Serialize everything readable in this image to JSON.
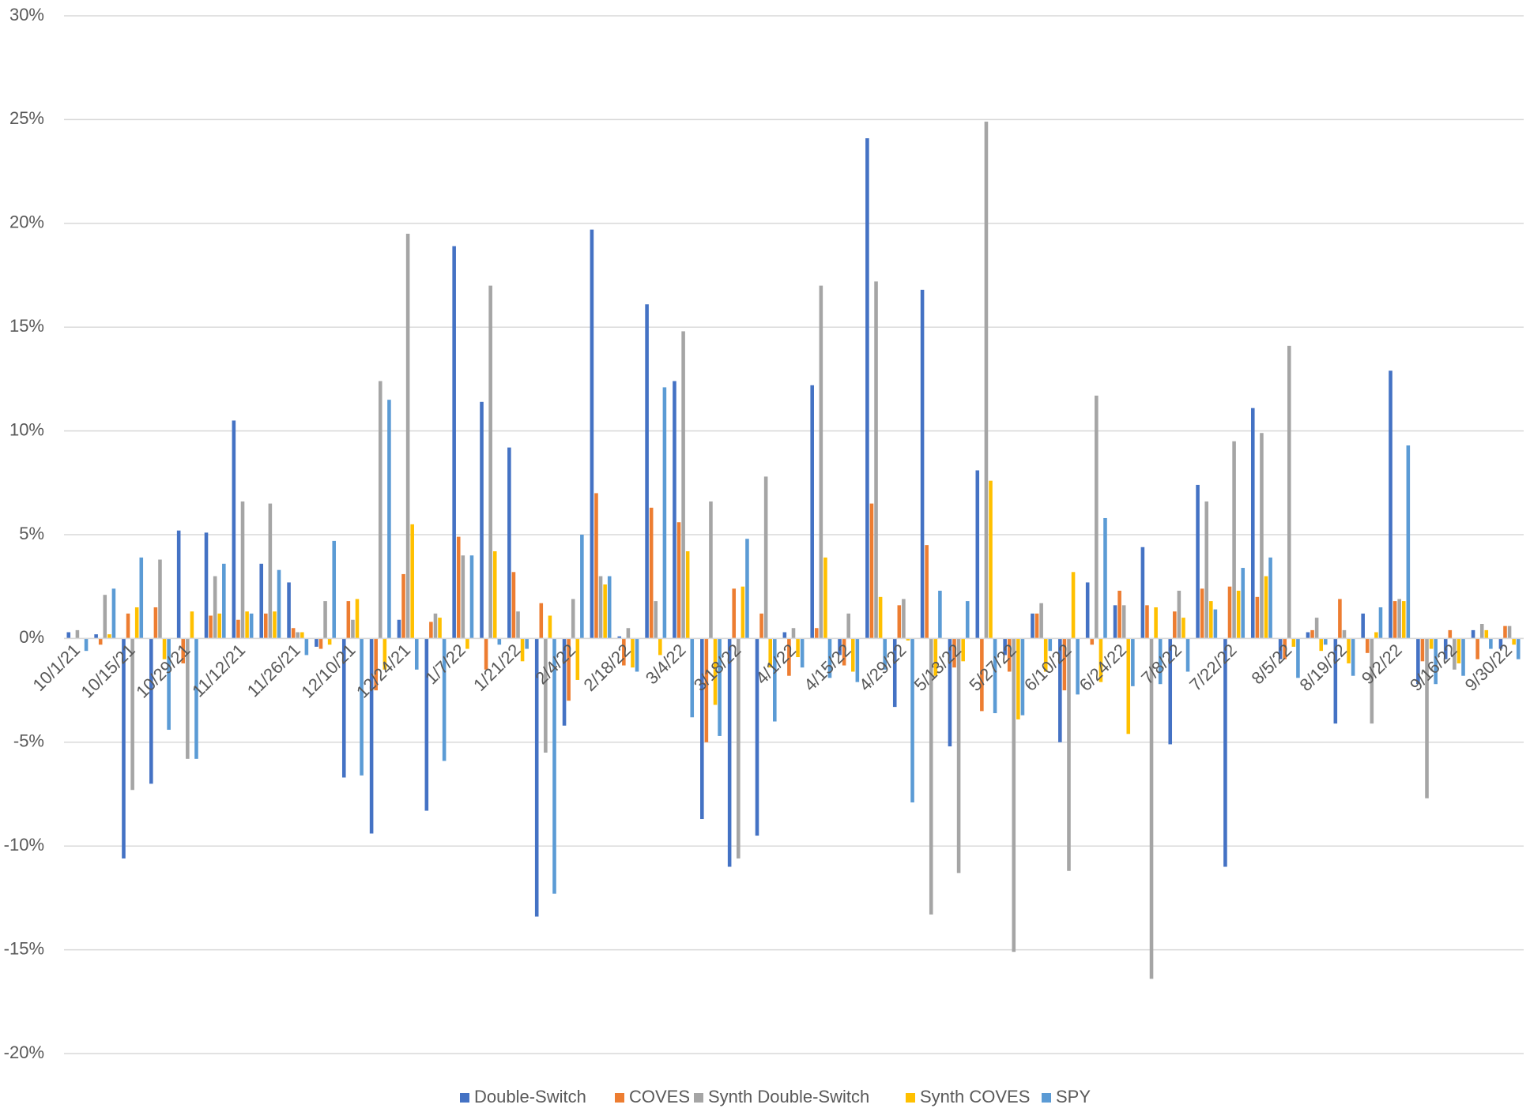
{
  "chart_data": {
    "type": "bar",
    "categories": [
      "10/1/21",
      null,
      "10/15/21",
      null,
      "10/29/21",
      null,
      "11/12/21",
      null,
      "11/26/21",
      null,
      "12/10/21",
      null,
      "12/24/21",
      null,
      "1/7/22",
      null,
      "1/21/22",
      null,
      "2/4/22",
      null,
      "2/18/22",
      null,
      "3/4/22",
      null,
      "3/18/22",
      null,
      "4/1/22",
      null,
      "4/15/22",
      null,
      "4/29/22",
      null,
      "5/13/22",
      null,
      "5/27/22",
      null,
      "6/10/22",
      null,
      "6/24/22",
      null,
      "7/8/22",
      null,
      "7/22/22",
      null,
      "8/5/22",
      null,
      "8/19/22",
      null,
      "9/2/22",
      null,
      "9/16/22",
      null,
      "9/30/22"
    ],
    "series": [
      {
        "name": "Double-Switch",
        "color": "#4472c4",
        "values": [
          0.3,
          0.2,
          -10.6,
          -7,
          5.2,
          5.1,
          10.5,
          3.6,
          2.7,
          -0.4,
          -6.7,
          -9.4,
          0.9,
          -8.3,
          18.9,
          11.4,
          9.2,
          -13.4,
          -4.2,
          19.7,
          0.1,
          16.1,
          12.4,
          -8.7,
          -11,
          -9.5,
          0.3,
          12.2,
          -0.8,
          24.1,
          -3.3,
          16.8,
          -5.2,
          8.1,
          -0.8,
          1.2,
          -5,
          2.7,
          1.6,
          4.4,
          -5.1,
          7.4,
          -11,
          11.1,
          -1,
          0.3,
          -4.1,
          1.2,
          12.9,
          -2.2,
          -1,
          0.4,
          -0.5
        ]
      },
      {
        "name": "COVES",
        "color": "#ed7d31",
        "values": [
          0,
          -0.3,
          1.2,
          1.5,
          -1.2,
          1.1,
          0.9,
          1.2,
          0.5,
          -0.5,
          1.8,
          -2.5,
          3.1,
          0.8,
          4.9,
          -1.5,
          3.2,
          1.7,
          -3,
          7,
          -1.3,
          6.3,
          5.6,
          -5,
          2.4,
          1.2,
          -1.8,
          0.5,
          -1.3,
          6.5,
          1.6,
          4.5,
          -1.4,
          -3.5,
          -1.6,
          1.2,
          -2.5,
          -0.3,
          2.3,
          1.6,
          1.3,
          2.4,
          2.5,
          2,
          -1,
          0.4,
          1.9,
          -0.7,
          1.8,
          -1.1,
          0.4,
          -1,
          0.6
        ]
      },
      {
        "name": "Synth Double-Switch",
        "color": "#a5a5a5",
        "values": [
          0.4,
          2.1,
          -7.3,
          3.8,
          -5.8,
          3,
          6.6,
          6.5,
          0.3,
          1.8,
          0.9,
          12.4,
          19.5,
          1.2,
          4,
          17,
          1.3,
          -5.5,
          1.9,
          3,
          0.5,
          1.8,
          14.8,
          6.6,
          -10.6,
          7.8,
          0.5,
          17,
          1.2,
          17.2,
          1.9,
          -13.3,
          -11.3,
          24.9,
          -15.1,
          1.7,
          -11.2,
          11.7,
          1.6,
          -16.4,
          2.3,
          6.6,
          9.5,
          9.9,
          14.1,
          1,
          0.4,
          -4.1,
          1.9,
          -7.7,
          -1.5,
          0.7,
          0.6
        ]
      },
      {
        "name": "Synth COVES",
        "color": "#ffc000",
        "values": [
          0,
          0.2,
          1.5,
          -1,
          1.3,
          1.2,
          1.3,
          1.3,
          0.3,
          -0.3,
          1.9,
          -1.5,
          5.5,
          1,
          -0.5,
          4.2,
          -1.1,
          1.1,
          -2,
          2.6,
          -1.4,
          -0.8,
          4.2,
          -3.2,
          2.5,
          -1.4,
          -0.9,
          3.9,
          -1.6,
          2,
          -0.1,
          -1.8,
          -1.1,
          7.6,
          -3.9,
          -1.6,
          3.2,
          -2.1,
          -4.6,
          1.5,
          1,
          1.8,
          2.3,
          3,
          -0.4,
          -0.6,
          -1.2,
          0.3,
          1.8,
          -0.5,
          -1.2,
          0.4,
          -0.3
        ]
      },
      {
        "name": "SPY",
        "color": "#5b9bd5",
        "values": [
          -0.6,
          2.4,
          3.9,
          -4.4,
          -5.8,
          3.6,
          1.2,
          3.3,
          -0.8,
          4.7,
          -6.6,
          11.5,
          -1.5,
          -5.9,
          4,
          -0.3,
          -0.5,
          -12.3,
          5,
          3,
          -1.6,
          12.1,
          -3.8,
          -4.7,
          4.8,
          -4,
          -1.4,
          -1.9,
          -2.1,
          -1.5,
          -7.9,
          2.3,
          1.8,
          -3.6,
          -3.7,
          -0.6,
          -2.7,
          5.8,
          -2.3,
          -2.2,
          -1.6,
          1.4,
          3.4,
          3.9,
          -1.9,
          -0.3,
          -1.8,
          1.5,
          9.3,
          -2.2,
          -1.8,
          -0.5,
          -1
        ]
      }
    ],
    "ylim": [
      -20,
      30
    ],
    "yticks": [
      {
        "value": -20,
        "label": "-20%"
      },
      {
        "value": -15,
        "label": "-15%"
      },
      {
        "value": -10,
        "label": "-10%"
      },
      {
        "value": -5,
        "label": "-5%"
      },
      {
        "value": 0,
        "label": "0%"
      },
      {
        "value": 5,
        "label": "5%"
      },
      {
        "value": 10,
        "label": "10%"
      },
      {
        "value": 15,
        "label": "15%"
      },
      {
        "value": 20,
        "label": "20%"
      },
      {
        "value": 25,
        "label": "25%"
      },
      {
        "value": 30,
        "label": "30%"
      }
    ],
    "grid": true,
    "legend": "bottom"
  }
}
